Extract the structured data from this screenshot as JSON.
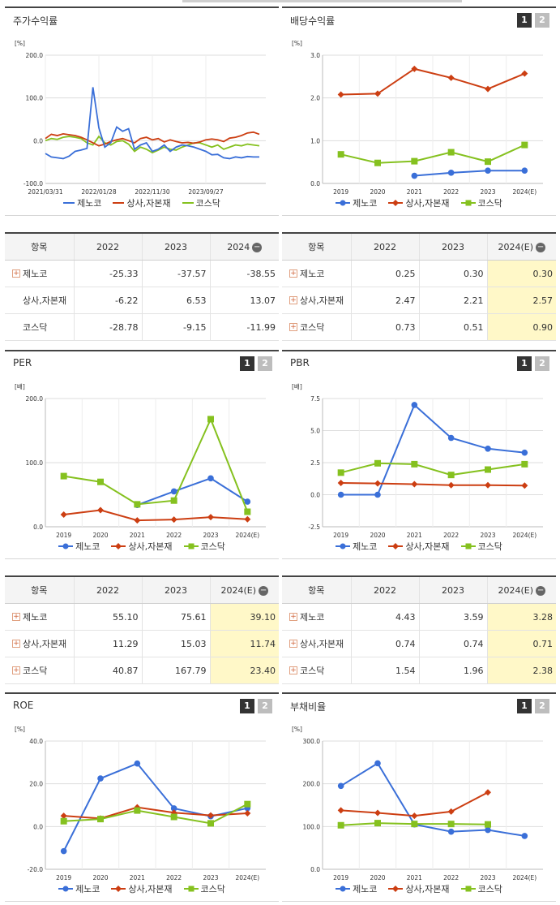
{
  "legend_names": [
    "제노코",
    "상사,자본재",
    "코스닥"
  ],
  "colors": {
    "s1": "#3a6fd8",
    "s2": "#cc3e12",
    "s3": "#85c11f"
  },
  "panels": {
    "price": {
      "title": "주가수익률",
      "unit": "[%]",
      "buttons": []
    },
    "div": {
      "title": "배당수익률",
      "unit": "[%]",
      "buttons": [
        "1",
        "2"
      ]
    },
    "per": {
      "title": "PER",
      "unit": "[배]",
      "buttons": [
        "1",
        "2"
      ]
    },
    "pbr": {
      "title": "PBR",
      "unit": "[배]",
      "buttons": [
        "1",
        "2"
      ]
    },
    "roe": {
      "title": "ROE",
      "unit": "[%]",
      "buttons": [
        "1",
        "2"
      ]
    },
    "debt": {
      "title": "부채비율",
      "unit": "[%]",
      "buttons": [
        "1",
        "2"
      ]
    }
  },
  "tables": {
    "price": {
      "headers": [
        "항목",
        "2022",
        "2023",
        "2024"
      ],
      "rows": [
        {
          "name": "제노코",
          "plus": true,
          "values": [
            "-25.33",
            "-37.57",
            "-38.55"
          ]
        },
        {
          "name": "상사,자본재",
          "plus": false,
          "values": [
            "-6.22",
            "6.53",
            "13.07"
          ]
        },
        {
          "name": "코스닥",
          "plus": false,
          "values": [
            "-28.78",
            "-9.15",
            "-11.99"
          ]
        }
      ]
    },
    "div": {
      "headers": [
        "항목",
        "2022",
        "2023",
        "2024(E)"
      ],
      "rows": [
        {
          "name": "제노코",
          "plus": true,
          "values": [
            "0.25",
            "0.30",
            "0.30"
          ]
        },
        {
          "name": "상사,자본재",
          "plus": true,
          "values": [
            "2.47",
            "2.21",
            "2.57"
          ]
        },
        {
          "name": "코스닥",
          "plus": true,
          "values": [
            "0.73",
            "0.51",
            "0.90"
          ]
        }
      ]
    },
    "per": {
      "headers": [
        "항목",
        "2022",
        "2023",
        "2024(E)"
      ],
      "rows": [
        {
          "name": "제노코",
          "plus": true,
          "values": [
            "55.10",
            "75.61",
            "39.10"
          ]
        },
        {
          "name": "상사,자본재",
          "plus": true,
          "values": [
            "11.29",
            "15.03",
            "11.74"
          ]
        },
        {
          "name": "코스닥",
          "plus": true,
          "values": [
            "40.87",
            "167.79",
            "23.40"
          ]
        }
      ]
    },
    "pbr": {
      "headers": [
        "항목",
        "2022",
        "2023",
        "2024(E)"
      ],
      "rows": [
        {
          "name": "제노코",
          "plus": true,
          "values": [
            "4.43",
            "3.59",
            "3.28"
          ]
        },
        {
          "name": "상사,자본재",
          "plus": true,
          "values": [
            "0.74",
            "0.74",
            "0.71"
          ]
        },
        {
          "name": "코스닥",
          "plus": true,
          "values": [
            "1.54",
            "1.96",
            "2.38"
          ]
        }
      ]
    }
  },
  "chart_data": [
    {
      "id": "price",
      "type": "line",
      "x_ticks": [
        "2021/03/31",
        "2022/01/28",
        "2022/11/30",
        "2023/09/27"
      ],
      "ylim": [
        -100,
        200
      ],
      "yticks": [
        "-100.0",
        "0.0",
        "100.0",
        "200.0"
      ],
      "series": [
        {
          "name": "제노코",
          "values": [
            -30,
            -38,
            -40,
            -42,
            -36,
            -25,
            -22,
            -18,
            125,
            30,
            -15,
            -5,
            32,
            22,
            28,
            -20,
            -10,
            -5,
            -25,
            -20,
            -10,
            -25,
            -15,
            -10,
            -12,
            -15,
            -20,
            -25,
            -33,
            -32,
            -40,
            -42,
            -38,
            -40,
            -37,
            -38,
            -38
          ]
        },
        {
          "name": "상사,자본재",
          "values": [
            5,
            15,
            12,
            16,
            14,
            12,
            8,
            2,
            -5,
            -12,
            -8,
            -2,
            2,
            5,
            0,
            -5,
            5,
            8,
            2,
            5,
            -3,
            2,
            -2,
            -5,
            -4,
            -6,
            -3,
            2,
            4,
            2,
            -2,
            6,
            8,
            12,
            18,
            20,
            15
          ]
        },
        {
          "name": "코스닥",
          "values": [
            0,
            5,
            3,
            8,
            10,
            8,
            5,
            -5,
            -10,
            10,
            -5,
            -10,
            -2,
            0,
            -8,
            -25,
            -15,
            -20,
            -28,
            -22,
            -15,
            -20,
            -22,
            -15,
            -10,
            -5,
            -5,
            -10,
            -15,
            -10,
            -20,
            -15,
            -10,
            -12,
            -8,
            -10,
            -12
          ]
        }
      ]
    },
    {
      "id": "div",
      "type": "line",
      "categories": [
        "2019",
        "2020",
        "2021",
        "2022",
        "2023",
        "2024(E)"
      ],
      "ylim": [
        0,
        3
      ],
      "yticks": [
        "0.0",
        "1.0",
        "2.0",
        "3.0"
      ],
      "series": [
        {
          "name": "제노코",
          "values": [
            null,
            null,
            0.18,
            0.25,
            0.3,
            0.3
          ]
        },
        {
          "name": "상사,자본재",
          "values": [
            2.08,
            2.1,
            2.68,
            2.47,
            2.21,
            2.57
          ]
        },
        {
          "name": "코스닥",
          "values": [
            0.68,
            0.48,
            0.52,
            0.73,
            0.51,
            0.9
          ]
        }
      ]
    },
    {
      "id": "per",
      "type": "line",
      "categories": [
        "2019",
        "2020",
        "2021",
        "2022",
        "2023",
        "2024(E)"
      ],
      "ylim": [
        0,
        200
      ],
      "yticks": [
        "0.0",
        "100.0",
        "200.0"
      ],
      "series": [
        {
          "name": "제노코",
          "values": [
            null,
            null,
            34,
            55.1,
            75.61,
            39.1
          ]
        },
        {
          "name": "상사,자본재",
          "values": [
            19,
            26,
            10,
            11.29,
            15.03,
            11.74
          ]
        },
        {
          "name": "코스닥",
          "values": [
            79,
            70,
            35,
            40.87,
            167.79,
            23.4
          ]
        }
      ]
    },
    {
      "id": "pbr",
      "type": "line",
      "categories": [
        "2019",
        "2020",
        "2021",
        "2022",
        "2023",
        "2024(E)"
      ],
      "ylim": [
        -2.5,
        7.5
      ],
      "yticks": [
        "-2.5",
        "0.0",
        "2.5",
        "5.0",
        "7.5"
      ],
      "series": [
        {
          "name": "제노코",
          "values": [
            0,
            0,
            7.0,
            4.43,
            3.59,
            3.28
          ]
        },
        {
          "name": "상사,자본재",
          "values": [
            0.92,
            0.88,
            0.82,
            0.74,
            0.74,
            0.71
          ]
        },
        {
          "name": "코스닥",
          "values": [
            1.72,
            2.45,
            2.38,
            1.54,
            1.96,
            2.38
          ]
        }
      ]
    },
    {
      "id": "roe",
      "type": "line",
      "categories": [
        "2019",
        "2020",
        "2021",
        "2022",
        "2023",
        "2024(E)"
      ],
      "ylim": [
        -20,
        40
      ],
      "yticks": [
        "-20.0",
        "0.0",
        "20.0",
        "40.0"
      ],
      "series": [
        {
          "name": "제노코",
          "values": [
            -11.5,
            22.5,
            29.5,
            8.5,
            4.8,
            8.6
          ]
        },
        {
          "name": "상사,자본재",
          "values": [
            5.0,
            3.8,
            9.0,
            6.5,
            5.2,
            6.2
          ]
        },
        {
          "name": "코스닥",
          "values": [
            2.5,
            3.5,
            7.5,
            4.5,
            1.5,
            10.5
          ]
        }
      ]
    },
    {
      "id": "debt",
      "type": "line",
      "categories": [
        "2019",
        "2020",
        "2021",
        "2022",
        "2023",
        "2024(E)"
      ],
      "ylim": [
        0,
        300
      ],
      "yticks": [
        "0.0",
        "100.0",
        "200.0",
        "300.0"
      ],
      "series": [
        {
          "name": "제노코",
          "values": [
            195,
            248,
            105,
            88,
            92,
            78
          ]
        },
        {
          "name": "상사,자본재",
          "values": [
            138,
            132,
            125,
            135,
            180,
            null
          ]
        },
        {
          "name": "코스닥",
          "values": [
            103,
            108,
            106,
            106,
            105,
            null
          ]
        }
      ]
    }
  ]
}
